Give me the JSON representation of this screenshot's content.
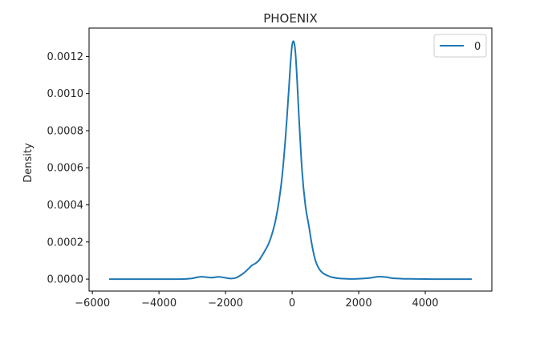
{
  "chart_data": {
    "type": "line",
    "title": "PHOENIX",
    "xlabel": "",
    "ylabel": "Density",
    "xlim": [
      -6100,
      6000
    ],
    "ylim": [
      -6.45e-05,
      0.001353
    ],
    "x_ticks": [
      -6000,
      -4000,
      -2000,
      0,
      2000,
      4000
    ],
    "x_tick_labels": [
      "−6000",
      "−4000",
      "−2000",
      "0",
      "2000",
      "4000"
    ],
    "y_ticks": [
      0.0,
      0.0002,
      0.0004,
      0.0006,
      0.0008,
      0.001,
      0.0012
    ],
    "y_tick_labels": [
      "0.0000",
      "0.0002",
      "0.0004",
      "0.0006",
      "0.0008",
      "0.0010",
      "0.0012"
    ],
    "grid": false,
    "legend": {
      "position": "top-right",
      "entries": [
        "0"
      ]
    },
    "colors": {
      "series": "#1f77b4",
      "axes": "#000000",
      "text": "#262626"
    },
    "series": [
      {
        "name": "0",
        "x": [
          -5480,
          -5000,
          -4500,
          -4000,
          -3500,
          -3200,
          -3000,
          -2850,
          -2700,
          -2550,
          -2400,
          -2200,
          -2000,
          -1850,
          -1700,
          -1600,
          -1450,
          -1300,
          -1200,
          -1100,
          -1000,
          -900,
          -800,
          -700,
          -600,
          -500,
          -400,
          -300,
          -200,
          -100,
          -50,
          0,
          50,
          100,
          150,
          200,
          300,
          400,
          500,
          600,
          700,
          800,
          900,
          1000,
          1100,
          1200,
          1400,
          1600,
          1800,
          2000,
          2200,
          2400,
          2550,
          2700,
          2850,
          3000,
          3300,
          3700,
          4200,
          4700,
          5000,
          5380
        ],
        "y": [
          0.0,
          0.0,
          0.0,
          0.0,
          0.0,
          1e-06,
          4e-06,
          1e-05,
          1.3e-05,
          1e-05,
          8e-06,
          1.2e-05,
          7e-06,
          3e-06,
          6e-06,
          1.5e-05,
          3.3e-05,
          5.8e-05,
          7.5e-05,
          8.5e-05,
          0.0001,
          0.000128,
          0.000158,
          0.000193,
          0.000245,
          0.000315,
          0.000415,
          0.000555,
          0.00076,
          0.00102,
          0.00116,
          0.00126,
          0.00128,
          0.00122,
          0.00107,
          0.00089,
          0.00058,
          0.000395,
          0.00029,
          0.00018,
          0.0001,
          5.8e-05,
          3.6e-05,
          2.4e-05,
          1.6e-05,
          1e-05,
          4e-06,
          2e-06,
          1e-06,
          2e-06,
          4e-06,
          8e-06,
          1.2e-05,
          1.3e-05,
          1e-05,
          5e-06,
          2e-06,
          1e-06,
          0.0,
          0.0,
          0.0,
          0.0
        ]
      }
    ]
  }
}
